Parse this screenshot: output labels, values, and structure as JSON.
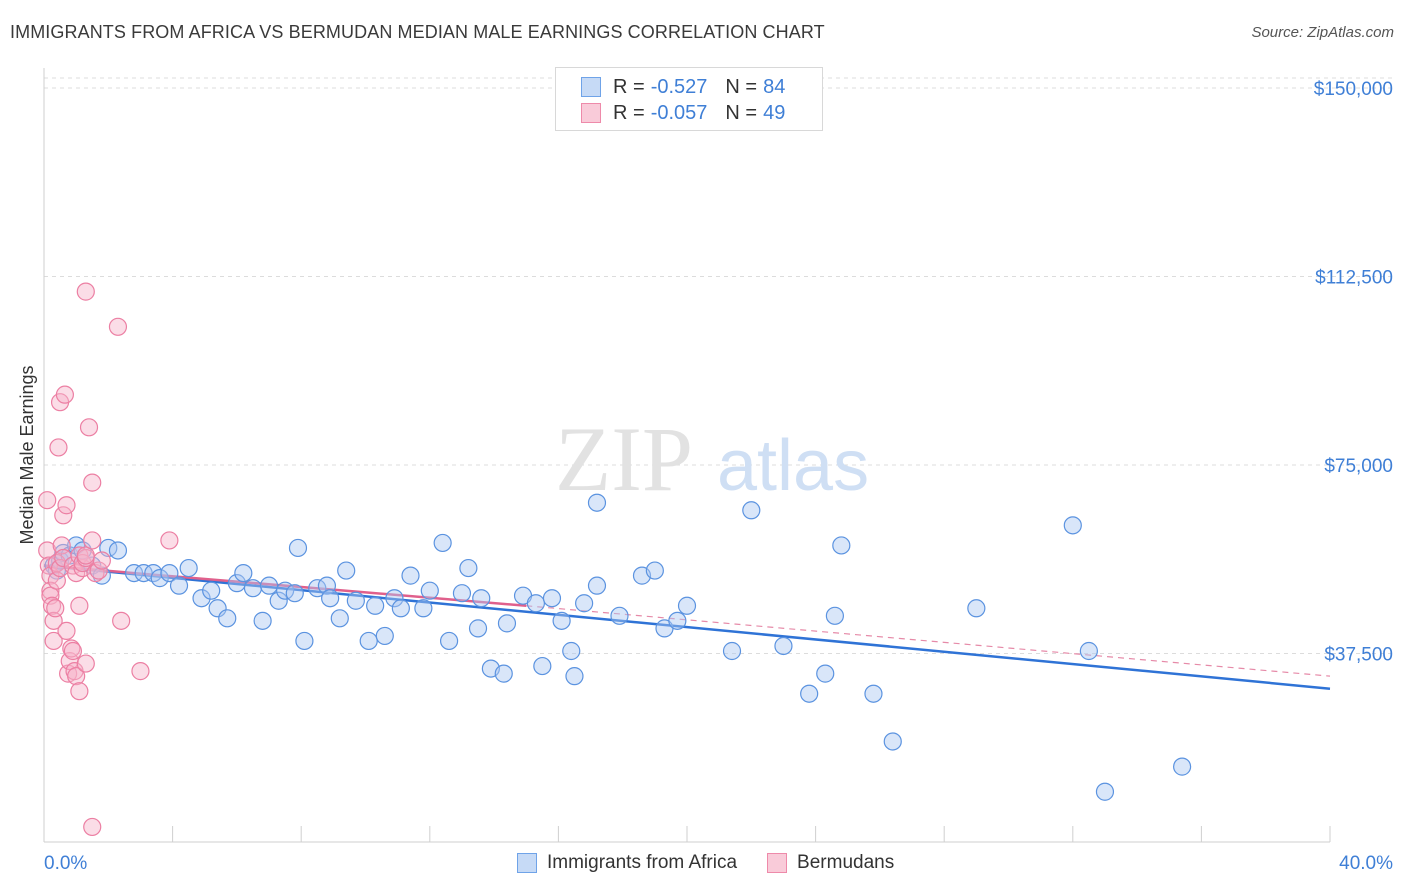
{
  "header": {
    "title": "IMMIGRANTS FROM AFRICA VS BERMUDAN MEDIAN MALE EARNINGS CORRELATION CHART",
    "source": "Source: ZipAtlas.com"
  },
  "watermark": {
    "zip": "ZIP",
    "atlas": "atlas"
  },
  "legend": {
    "r_label": "R =",
    "n_label": "N =",
    "series": [
      {
        "name": "Immigrants from Africa",
        "r": "-0.527",
        "n": "84",
        "color": "#6fa3e8",
        "fill": "#c6daf6"
      },
      {
        "name": "Bermudans",
        "r": "-0.057",
        "n": "49",
        "color": "#ee8aaa",
        "fill": "#f9cbd9"
      }
    ]
  },
  "chart_data": {
    "type": "scatter",
    "title": "IMMIGRANTS FROM AFRICA VS BERMUDAN MEDIAN MALE EARNINGS CORRELATION CHART",
    "xlabel": "",
    "ylabel": "Median Male Earnings",
    "xlim": [
      0,
      40
    ],
    "ylim": [
      0,
      152000
    ],
    "x_tick_labels": [
      "0.0%",
      "40.0%"
    ],
    "y_ticks": [
      37500,
      75000,
      112500,
      150000
    ],
    "y_tick_labels": [
      "$37,500",
      "$75,000",
      "$112,500",
      "$150,000"
    ],
    "grid": true,
    "legend_position": "top-center",
    "series": [
      {
        "name": "Immigrants from Africa",
        "color": "#5b93e0",
        "points": [
          [
            0.3,
            55000
          ],
          [
            0.4,
            54000
          ],
          [
            0.5,
            56000
          ],
          [
            0.6,
            57500
          ],
          [
            0.8,
            57000
          ],
          [
            1.0,
            59000
          ],
          [
            1.2,
            58000
          ],
          [
            1.5,
            55000
          ],
          [
            1.8,
            53000
          ],
          [
            2.0,
            58500
          ],
          [
            2.3,
            58000
          ],
          [
            2.8,
            53500
          ],
          [
            3.1,
            53500
          ],
          [
            3.4,
            53500
          ],
          [
            3.6,
            52500
          ],
          [
            3.9,
            53500
          ],
          [
            4.2,
            51000
          ],
          [
            4.5,
            54500
          ],
          [
            4.9,
            48500
          ],
          [
            5.2,
            50000
          ],
          [
            5.4,
            46500
          ],
          [
            5.7,
            44500
          ],
          [
            6.0,
            51500
          ],
          [
            6.2,
            53500
          ],
          [
            6.5,
            50500
          ],
          [
            6.8,
            44000
          ],
          [
            7.0,
            51000
          ],
          [
            7.3,
            48000
          ],
          [
            7.5,
            50000
          ],
          [
            7.8,
            49500
          ],
          [
            7.9,
            58500
          ],
          [
            8.1,
            40000
          ],
          [
            8.5,
            50500
          ],
          [
            8.8,
            51000
          ],
          [
            8.9,
            48500
          ],
          [
            9.2,
            44500
          ],
          [
            9.4,
            54000
          ],
          [
            9.7,
            48000
          ],
          [
            10.1,
            40000
          ],
          [
            10.3,
            47000
          ],
          [
            10.6,
            41000
          ],
          [
            10.9,
            48500
          ],
          [
            11.1,
            46500
          ],
          [
            11.4,
            53000
          ],
          [
            11.8,
            46500
          ],
          [
            12.0,
            50000
          ],
          [
            12.4,
            59500
          ],
          [
            12.6,
            40000
          ],
          [
            13.0,
            49500
          ],
          [
            13.2,
            54500
          ],
          [
            13.5,
            42500
          ],
          [
            13.6,
            48500
          ],
          [
            13.9,
            34500
          ],
          [
            14.3,
            33500
          ],
          [
            14.4,
            43500
          ],
          [
            14.9,
            49000
          ],
          [
            15.3,
            47500
          ],
          [
            15.5,
            35000
          ],
          [
            15.8,
            48500
          ],
          [
            16.1,
            44000
          ],
          [
            16.4,
            38000
          ],
          [
            16.5,
            33000
          ],
          [
            16.8,
            47500
          ],
          [
            17.2,
            51000
          ],
          [
            17.2,
            67500
          ],
          [
            17.9,
            45000
          ],
          [
            18.6,
            53000
          ],
          [
            19.0,
            54000
          ],
          [
            19.3,
            42500
          ],
          [
            19.7,
            44000
          ],
          [
            20.0,
            47000
          ],
          [
            21.4,
            38000
          ],
          [
            22.0,
            66000
          ],
          [
            23.0,
            39000
          ],
          [
            23.8,
            29500
          ],
          [
            24.3,
            33500
          ],
          [
            24.6,
            45000
          ],
          [
            24.8,
            59000
          ],
          [
            25.8,
            29500
          ],
          [
            26.4,
            20000
          ],
          [
            29.0,
            46500
          ],
          [
            32.0,
            63000
          ],
          [
            32.5,
            38000
          ],
          [
            35.4,
            15000
          ],
          [
            33.0,
            10000
          ]
        ],
        "trend": {
          "x0": 0,
          "y0": 55000,
          "x1": 40,
          "y1": 30500
        }
      },
      {
        "name": "Bermudans",
        "color": "#ec7fa3",
        "points": [
          [
            0.1,
            68000
          ],
          [
            0.1,
            58000
          ],
          [
            0.15,
            55000
          ],
          [
            0.2,
            53000
          ],
          [
            0.2,
            50000
          ],
          [
            0.2,
            49000
          ],
          [
            0.25,
            47000
          ],
          [
            0.3,
            44000
          ],
          [
            0.3,
            40000
          ],
          [
            0.35,
            46500
          ],
          [
            0.4,
            52000
          ],
          [
            0.4,
            55500
          ],
          [
            0.45,
            78500
          ],
          [
            0.5,
            54500
          ],
          [
            0.5,
            87500
          ],
          [
            0.55,
            59000
          ],
          [
            0.6,
            65000
          ],
          [
            0.6,
            56500
          ],
          [
            0.65,
            89000
          ],
          [
            0.7,
            67000
          ],
          [
            0.7,
            42000
          ],
          [
            0.75,
            33500
          ],
          [
            0.8,
            36000
          ],
          [
            0.85,
            38500
          ],
          [
            0.9,
            38000
          ],
          [
            0.9,
            55000
          ],
          [
            0.95,
            34000
          ],
          [
            1.0,
            33000
          ],
          [
            1.0,
            53500
          ],
          [
            1.1,
            57000
          ],
          [
            1.1,
            47000
          ],
          [
            1.2,
            54500
          ],
          [
            1.2,
            55500
          ],
          [
            1.3,
            56500
          ],
          [
            1.3,
            35500
          ],
          [
            1.1,
            30000
          ],
          [
            1.3,
            57000
          ],
          [
            1.3,
            109500
          ],
          [
            1.4,
            82500
          ],
          [
            1.5,
            60000
          ],
          [
            1.5,
            71500
          ],
          [
            1.6,
            53500
          ],
          [
            1.7,
            54000
          ],
          [
            1.8,
            56000
          ],
          [
            2.3,
            102500
          ],
          [
            2.4,
            44000
          ],
          [
            3.0,
            34000
          ],
          [
            3.9,
            60000
          ],
          [
            1.5,
            3000
          ]
        ],
        "trend": {
          "x0": 0,
          "y0": 55000,
          "x1": 15,
          "y1": 47000
        },
        "trend_extension": {
          "x0": 15,
          "y0": 47000,
          "x1": 40,
          "y1": 33000
        }
      }
    ]
  }
}
